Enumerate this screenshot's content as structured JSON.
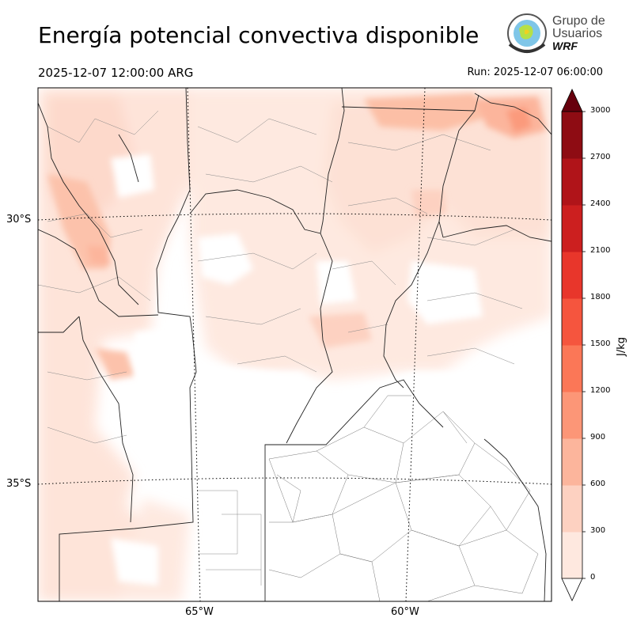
{
  "header": {
    "title": "Energía potencial convectiva disponible",
    "valid_time": "2025-12-07 12:00:00 ARG",
    "run_time": "Run: 2025-12-07 06:00:00"
  },
  "logo": {
    "line1": "Grupo de",
    "line2": "Usuarios",
    "line3": "WRF"
  },
  "chart_data": {
    "type": "heatmap",
    "title": "Energía potencial convectiva disponible",
    "variable_units": "J/kg",
    "colorbar": {
      "label": "J/kg",
      "levels": [
        0,
        300,
        600,
        900,
        1200,
        1500,
        1800,
        2100,
        2400,
        2700,
        3000
      ],
      "tick_labels": [
        "0",
        "300",
        "600",
        "900",
        "1200",
        "1500",
        "1800",
        "2100",
        "2400",
        "2700",
        "3000"
      ],
      "colors": [
        "#fee8df",
        "#fdd1c1",
        "#fcb59c",
        "#fc9677",
        "#fb7757",
        "#f5553e",
        "#e8362b",
        "#cc1f1f",
        "#b01419",
        "#8e0c13"
      ],
      "extend": "both",
      "over_color": "#67000d"
    },
    "lat_ticks": [
      {
        "value": -30,
        "label": "30°S"
      },
      {
        "value": -35,
        "label": "35°S"
      }
    ],
    "lon_ticks": [
      {
        "value": -65,
        "label": "65°W"
      },
      {
        "value": -60,
        "label": "60°W"
      }
    ],
    "grid": "dotted",
    "max_value_approx": 1200,
    "max_region": "northeast (Corrientes / Misiones area)"
  }
}
